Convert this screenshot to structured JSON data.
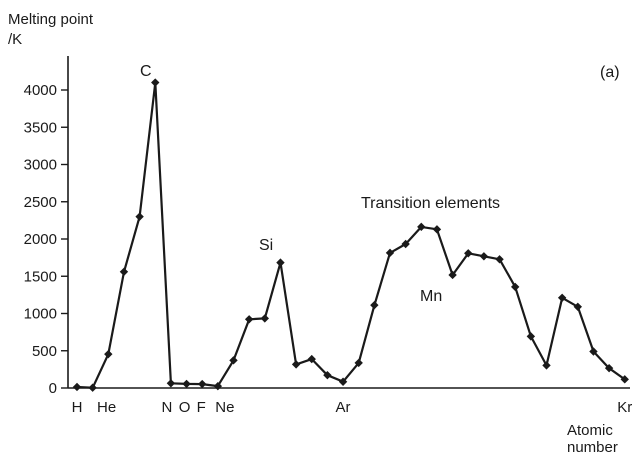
{
  "chart_data": {
    "type": "line",
    "panel_label": "(a)",
    "ylabel_line1": "Melting point",
    "ylabel_line2": "/K",
    "xlabel_line1": "Atomic",
    "xlabel_line2": "number",
    "ylim": [
      0,
      4000
    ],
    "yticks": [
      0,
      500,
      1000,
      1500,
      2000,
      2500,
      3000,
      3500,
      4000
    ],
    "ytick_labels": [
      "0",
      "500",
      "1000",
      "1500",
      "2000",
      "2500",
      "3000",
      "3500",
      "4000"
    ],
    "xlim": [
      1,
      36
    ],
    "grid": false,
    "x": [
      1,
      2,
      3,
      4,
      5,
      6,
      7,
      8,
      9,
      10,
      11,
      12,
      13,
      14,
      15,
      16,
      17,
      18,
      19,
      20,
      21,
      22,
      23,
      24,
      25,
      26,
      27,
      28,
      29,
      30,
      31,
      32,
      33,
      34,
      35,
      36
    ],
    "values": [
      14,
      4,
      454,
      1560,
      2300,
      4100,
      63,
      55,
      53,
      25,
      371,
      922,
      934,
      1683,
      317,
      388,
      172,
      84,
      337,
      1112,
      1814,
      1933,
      2163,
      2130,
      1517,
      1808,
      1768,
      1728,
      1357,
      693,
      303,
      1211,
      1090,
      490,
      266,
      116
    ],
    "element_labels": [
      {
        "x": 1,
        "text": "H"
      },
      {
        "x": 2,
        "text": "He"
      },
      {
        "x": 7,
        "text": "N"
      },
      {
        "x": 8,
        "text": "O"
      },
      {
        "x": 9,
        "text": "F"
      },
      {
        "x": 10,
        "text": "Ne"
      },
      {
        "x": 18,
        "text": "Ar"
      },
      {
        "x": 36,
        "text": "Kr"
      }
    ],
    "annotations": [
      "C",
      "Si",
      "Transition elements",
      "Mn"
    ]
  }
}
